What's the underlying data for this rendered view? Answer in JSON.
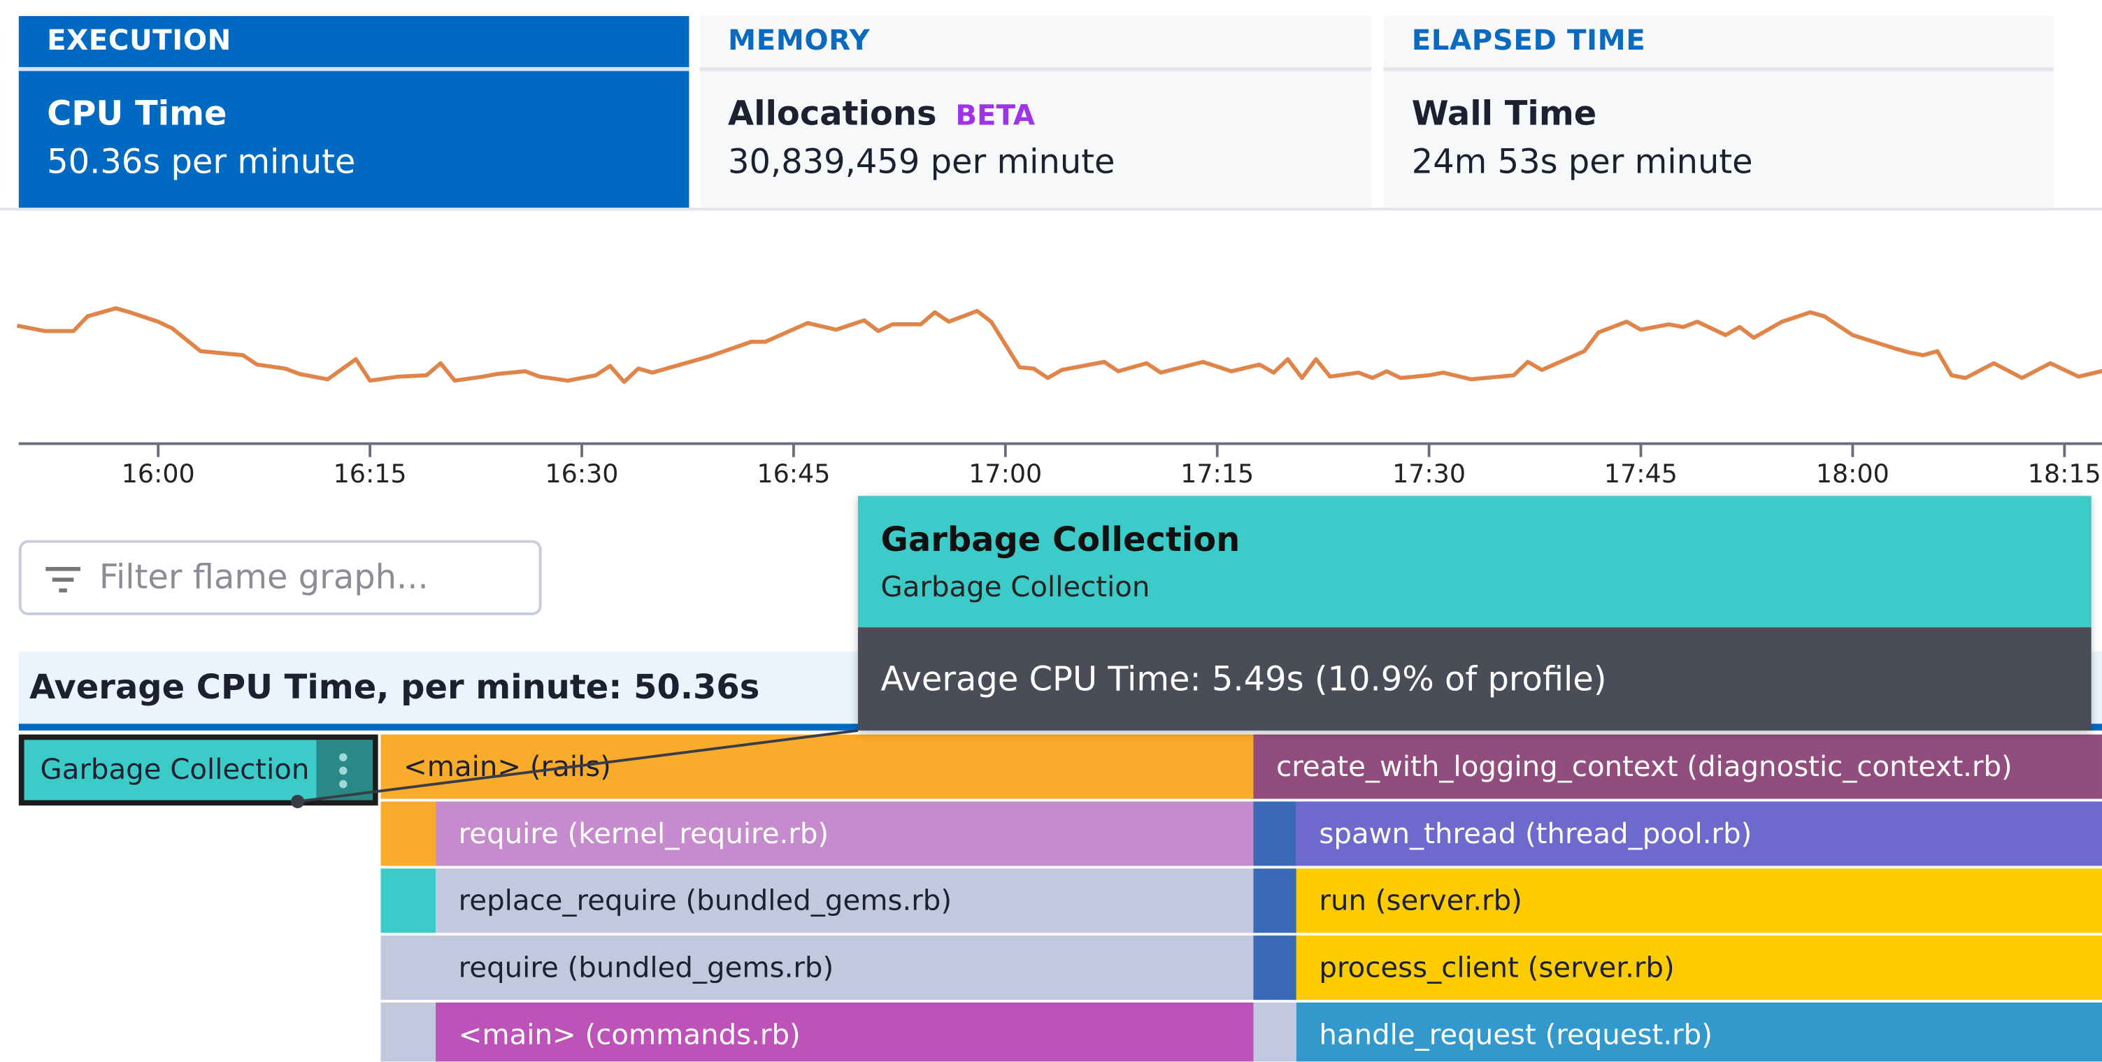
{
  "tabs": [
    {
      "section": "EXECUTION",
      "metric": "CPU Time",
      "value": "50.36s per minute",
      "active": true
    },
    {
      "section": "MEMORY",
      "metric": "Allocations",
      "badge": "BETA",
      "value": "30,839,459 per minute",
      "active": false
    },
    {
      "section": "ELAPSED TIME",
      "metric": "Wall Time",
      "value": "24m 53s per minute",
      "active": false
    }
  ],
  "colors": {
    "accent": "#0069c2",
    "line": "#e0854a",
    "beta": "#a033e8",
    "tooltip_header": "#3ccbc9",
    "tooltip_body": "#4a4d58"
  },
  "chart_data": {
    "type": "line",
    "x_tick_labels": [
      "16:00",
      "16:15",
      "16:30",
      "16:45",
      "17:00",
      "17:15",
      "17:30",
      "17:45",
      "18:00",
      "18:15"
    ],
    "grid": false,
    "series": [
      {
        "x": [
          "15:50",
          "15:52",
          "15:54",
          "15:55",
          "15:57",
          "15:58",
          "16:00",
          "16:01",
          "16:03",
          "16:06",
          "16:07",
          "16:09",
          "16:10",
          "16:12",
          "16:14",
          "16:15",
          "16:17",
          "16:19",
          "16:20",
          "16:21",
          "16:23",
          "16:24",
          "16:26",
          "16:27",
          "16:29",
          "16:31",
          "16:32",
          "16:33",
          "16:34",
          "16:35",
          "16:37",
          "16:39",
          "16:42",
          "16:43",
          "16:46",
          "16:48",
          "16:50",
          "16:51",
          "16:52",
          "16:54",
          "16:55",
          "16:56",
          "16:58",
          "16:59",
          "17:01",
          "17:02",
          "17:03",
          "17:04",
          "17:07",
          "17:08",
          "17:10",
          "17:11",
          "17:14",
          "17:16",
          "17:18",
          "17:19",
          "17:20",
          "17:21",
          "17:22",
          "17:23",
          "17:25",
          "17:26",
          "17:27",
          "17:28",
          "17:30",
          "17:31",
          "17:33",
          "17:36",
          "17:37",
          "17:38",
          "17:41",
          "17:42",
          "17:44",
          "17:45",
          "17:47",
          "17:48",
          "17:49",
          "17:51",
          "17:52",
          "17:53",
          "17:55",
          "17:57",
          "17:58",
          "18:00",
          "18:03",
          "18:04",
          "18:05",
          "18:06",
          "18:07",
          "18:08",
          "18:10",
          "18:12",
          "18:14",
          "18:16",
          "18:18"
        ],
        "values": [
          57,
          53,
          53,
          64,
          70,
          67,
          60,
          55,
          38,
          35,
          28,
          25,
          21,
          17,
          32,
          16,
          19,
          20,
          29,
          16,
          19,
          21,
          23,
          19,
          16,
          20,
          27,
          15,
          25,
          22,
          28,
          34,
          45,
          45,
          59,
          54,
          61,
          53,
          58,
          58,
          67,
          60,
          68,
          60,
          26,
          25,
          18,
          24,
          30,
          23,
          29,
          22,
          30,
          23,
          28,
          22,
          32,
          18,
          32,
          19,
          22,
          18,
          23,
          18,
          20,
          22,
          17,
          20,
          30,
          24,
          38,
          52,
          60,
          54,
          58,
          56,
          60,
          50,
          56,
          48,
          60,
          67,
          64,
          50,
          40,
          37,
          35,
          38,
          20,
          18,
          29,
          18,
          29,
          19,
          24
        ]
      }
    ]
  },
  "filter": {
    "placeholder": "Filter flame graph..."
  },
  "flame": {
    "header": "Average CPU Time, per minute: 50.36s",
    "selected": "Garbage Collection",
    "rows": [
      [
        "<main> (rails)",
        "create_with_logging_context (diagnostic_context.rb)"
      ],
      [
        "require (kernel_require.rb)",
        "spawn_thread (thread_pool.rb)"
      ],
      [
        "replace_require (bundled_gems.rb)",
        "run (server.rb)"
      ],
      [
        "require (bundled_gems.rb)",
        "process_client (server.rb)"
      ],
      [
        "<main> (commands.rb)",
        "handle_request (request.rb)"
      ]
    ]
  },
  "tooltip": {
    "title": "Garbage Collection",
    "subtitle": "Garbage Collection",
    "metric": "Average CPU Time: 5.49s (10.9% of profile)"
  }
}
